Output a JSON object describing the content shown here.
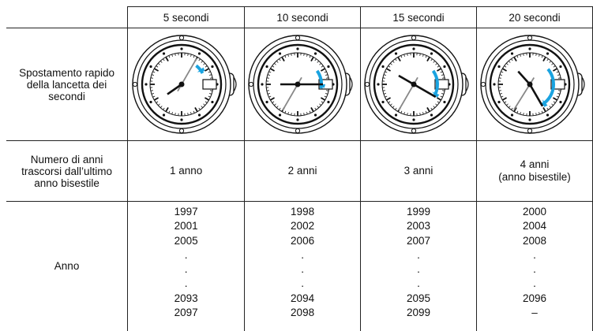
{
  "table": {
    "header": [
      "5 secondi",
      "10 secondi",
      "15 secondi",
      "20 secondi"
    ],
    "rows": [
      {
        "label": "Spostamento rapido della lancetta dei secondi"
      },
      {
        "label": "Numero di anni trascorsi dall’ultimo anno bisestile",
        "cells": [
          "1 anno",
          "2 anni",
          "3 anni",
          "4 anni\n(anno bisestile)"
        ]
      },
      {
        "label": "Anno",
        "cells": [
          [
            "1997",
            "2001",
            "2005",
            ".",
            ".",
            ".",
            "2093",
            "2097"
          ],
          [
            "1998",
            "2002",
            "2006",
            ".",
            ".",
            ".",
            "2094",
            "2098"
          ],
          [
            "1999",
            "2003",
            "2007",
            ".",
            ".",
            ".",
            "2095",
            "2099"
          ],
          [
            "2000",
            "2004",
            "2008",
            ".",
            ".",
            ".",
            "2096",
            "–"
          ]
        ]
      }
    ]
  }
}
